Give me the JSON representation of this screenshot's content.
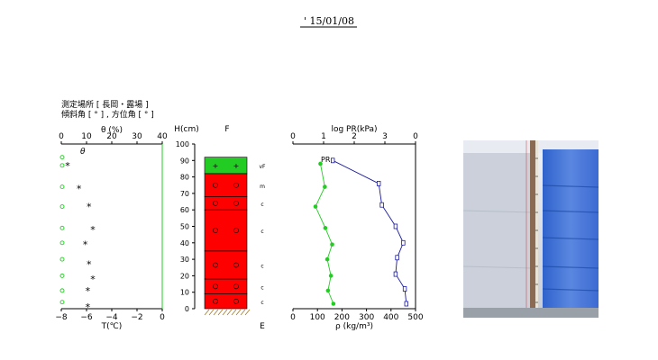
{
  "date_label": "' 15/01/08",
  "site": {
    "line1": "測定場所 [ 長岡・露場 ]",
    "line2": "傾斜角 [ ° ] , 方位角 [ ° ]"
  },
  "chart_data": [
    {
      "type": "scatter",
      "name": "temperature-water-content",
      "x_top_label": "θ (%)",
      "x_top_ticks": [
        "0",
        "10",
        "20",
        "30",
        "40"
      ],
      "x_top_range": [
        0,
        40
      ],
      "x_bottom_label": "T(℃)",
      "x_bottom_ticks": [
        "−8",
        "−6",
        "−4",
        "−2",
        "0"
      ],
      "x_bottom_range": [
        -8,
        0
      ],
      "y_range": [
        0,
        100
      ],
      "temp_symbol": "*",
      "theta_symbol": "θ",
      "temperature": [
        {
          "h": 87,
          "t": -7.5
        },
        {
          "h": 73,
          "t": -6.6
        },
        {
          "h": 62,
          "t": -5.8
        },
        {
          "h": 48,
          "t": -5.5
        },
        {
          "h": 39,
          "t": -6.1
        },
        {
          "h": 27,
          "t": -5.8
        },
        {
          "h": 18,
          "t": -5.5
        },
        {
          "h": 11,
          "t": -5.9
        },
        {
          "h": 1,
          "t": -5.9
        }
      ],
      "water_content": [
        {
          "h": 92,
          "theta": 0
        },
        {
          "h": 87,
          "theta": 0
        },
        {
          "h": 74,
          "theta": 0
        },
        {
          "h": 62,
          "theta": 0
        },
        {
          "h": 49,
          "theta": 0
        },
        {
          "h": 40,
          "theta": 0
        },
        {
          "h": 30,
          "theta": 0
        },
        {
          "h": 20,
          "theta": 0
        },
        {
          "h": 11,
          "theta": 0
        },
        {
          "h": 4,
          "theta": 0
        }
      ]
    },
    {
      "type": "table",
      "name": "snow-layer-profile",
      "y_label": "H(cm)",
      "y_ticks": [
        "0",
        "10",
        "20",
        "30",
        "40",
        "50",
        "60",
        "70",
        "80",
        "90",
        "100"
      ],
      "y_range": [
        0,
        100
      ],
      "column_title": "F",
      "bottom_label": "E",
      "layers": [
        {
          "top": 92,
          "bottom": 82,
          "color": "#22cc22",
          "symbol": "+",
          "hardness": "vF"
        },
        {
          "top": 82,
          "bottom": 68,
          "color": "#ff0000",
          "symbol": "o",
          "hardness": "m"
        },
        {
          "top": 68,
          "bottom": 60,
          "color": "#ff0000",
          "symbol": "o",
          "hardness": "c"
        },
        {
          "top": 60,
          "bottom": 35,
          "color": "#ff0000",
          "symbol": "o",
          "hardness": "c"
        },
        {
          "top": 35,
          "bottom": 18,
          "color": "#ff0000",
          "symbol": "o",
          "hardness": "c"
        },
        {
          "top": 18,
          "bottom": 9,
          "color": "#ff0000",
          "symbol": "o",
          "hardness": "c"
        },
        {
          "top": 9,
          "bottom": 0,
          "color": "#ff0000",
          "symbol": "o",
          "hardness": "c"
        }
      ]
    },
    {
      "type": "line",
      "name": "density-hardness",
      "x_top_label": "log PR(kPa)",
      "x_top_ticks": [
        "0",
        "1",
        "2",
        "3",
        "0"
      ],
      "x_top_range": [
        0,
        4
      ],
      "x_bottom_label": "ρ (kg/m³)",
      "x_bottom_ticks": [
        "0",
        "100",
        "200",
        "300",
        "400",
        "500"
      ],
      "x_bottom_range": [
        0,
        500
      ],
      "y_range": [
        0,
        100
      ],
      "pr_label": "PR",
      "series": [
        {
          "name": "PR",
          "color": "#1a1aa0",
          "points": [
            {
              "h": 90,
              "v": 1.3
            },
            {
              "h": 76,
              "v": 2.8
            },
            {
              "h": 63,
              "v": 2.9
            },
            {
              "h": 50,
              "v": 3.35
            },
            {
              "h": 40,
              "v": 3.6
            },
            {
              "h": 31,
              "v": 3.4
            },
            {
              "h": 21,
              "v": 3.35
            },
            {
              "h": 12,
              "v": 3.65
            },
            {
              "h": 3,
              "v": 3.7
            }
          ]
        },
        {
          "name": "density",
          "color": "#22cc22",
          "points": [
            {
              "h": 88,
              "v": 112
            },
            {
              "h": 74,
              "v": 130
            },
            {
              "h": 62,
              "v": 92
            },
            {
              "h": 49,
              "v": 132
            },
            {
              "h": 39,
              "v": 160
            },
            {
              "h": 30,
              "v": 140
            },
            {
              "h": 20,
              "v": 155
            },
            {
              "h": 11,
              "v": 143
            },
            {
              "h": 3,
              "v": 165
            }
          ]
        }
      ]
    }
  ],
  "photo": {
    "colors": {
      "snow": "#c9ced8",
      "blue": "#3a6fd6",
      "staff": "#8a6a52"
    }
  }
}
